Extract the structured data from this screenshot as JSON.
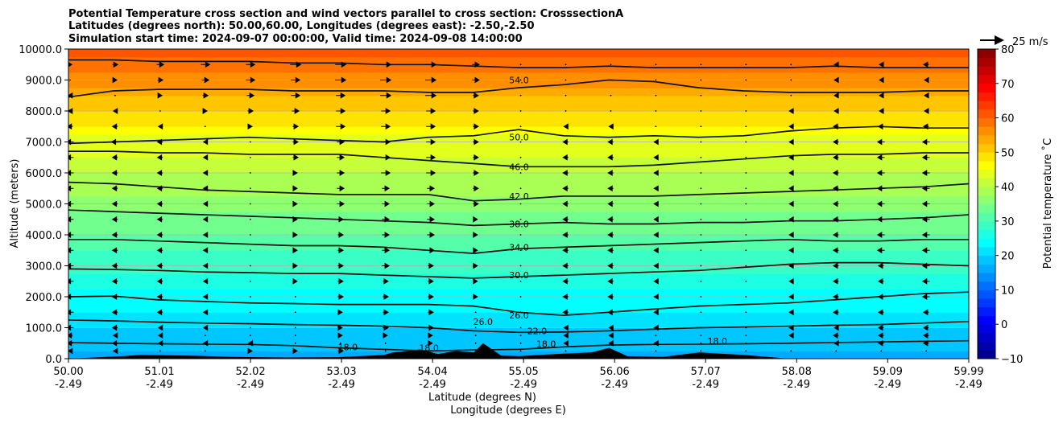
{
  "chart_data": {
    "type": "contour",
    "title_lines": [
      "Potential Temperature cross section and wind vectors parallel to cross section: CrosssectionA",
      "Latitudes (degrees north): 50.00,60.00, Longitudes (degrees east): -2.50,-2.50",
      "Simulation start time: 2024-09-07 00:00:00, Valid time: 2024-09-08 14:00:00"
    ],
    "ylabel": "Altitude (meters)",
    "xlabel_line1": "Latitude (degrees N)",
    "xlabel_line2": "Longitude (degrees E)",
    "xlim": [
      50.0,
      59.99
    ],
    "ylim": [
      0,
      10000
    ],
    "grid": true,
    "x_ticks": [
      {
        "lat": "50.00",
        "lon": "-2.49",
        "value": 50.0
      },
      {
        "lat": "51.01",
        "lon": "-2.49",
        "value": 51.01
      },
      {
        "lat": "52.02",
        "lon": "-2.49",
        "value": 52.02
      },
      {
        "lat": "53.03",
        "lon": "-2.49",
        "value": 53.03
      },
      {
        "lat": "54.04",
        "lon": "-2.49",
        "value": 54.04
      },
      {
        "lat": "55.05",
        "lon": "-2.49",
        "value": 55.05
      },
      {
        "lat": "56.06",
        "lon": "-2.49",
        "value": 56.06
      },
      {
        "lat": "57.07",
        "lon": "-2.49",
        "value": 57.07
      },
      {
        "lat": "58.08",
        "lon": "-2.49",
        "value": 58.08
      },
      {
        "lat": "59.09",
        "lon": "-2.49",
        "value": 59.09
      },
      {
        "lat": "59.99",
        "lon": "-2.49",
        "value": 59.99
      }
    ],
    "y_ticks": [
      {
        "label": "0.0",
        "value": 0
      },
      {
        "label": "1000.0",
        "value": 1000
      },
      {
        "label": "2000.0",
        "value": 2000
      },
      {
        "label": "3000.0",
        "value": 3000
      },
      {
        "label": "4000.0",
        "value": 4000
      },
      {
        "label": "5000.0",
        "value": 5000
      },
      {
        "label": "6000.0",
        "value": 6000
      },
      {
        "label": "7000.0",
        "value": 7000
      },
      {
        "label": "8000.0",
        "value": 8000
      },
      {
        "label": "9000.0",
        "value": 9000
      },
      {
        "label": "10000.0",
        "value": 10000
      }
    ],
    "contours": [
      {
        "label": "18.0",
        "value": 18,
        "heights": [
          520,
          500,
          480,
          470,
          460,
          420,
          350,
          300,
          250,
          280,
          300,
          380,
          440,
          460,
          470,
          480,
          500,
          520,
          540,
          560,
          580
        ]
      },
      {
        "label": "22.0",
        "value": 22,
        "heights": [
          1250,
          1220,
          1180,
          1150,
          1130,
          1100,
          1080,
          1050,
          1000,
          900,
          850,
          860,
          900,
          950,
          1000,
          1020,
          1050,
          1080,
          1100,
          1150,
          1200
        ]
      },
      {
        "label": "26.0",
        "value": 26,
        "heights": [
          2000,
          2020,
          1900,
          1850,
          1800,
          1780,
          1750,
          1750,
          1750,
          1700,
          1500,
          1400,
          1500,
          1600,
          1700,
          1750,
          1800,
          1900,
          2000,
          2100,
          2150
        ]
      },
      {
        "label": "30.0",
        "value": 30,
        "heights": [
          2900,
          2880,
          2850,
          2800,
          2780,
          2750,
          2750,
          2700,
          2650,
          2600,
          2650,
          2700,
          2750,
          2800,
          2850,
          2950,
          3050,
          3100,
          3100,
          3050,
          3000
        ]
      },
      {
        "label": "34.0",
        "value": 34,
        "heights": [
          3850,
          3850,
          3800,
          3750,
          3700,
          3650,
          3650,
          3600,
          3500,
          3400,
          3550,
          3600,
          3650,
          3700,
          3750,
          3800,
          3850,
          3800,
          3800,
          3850,
          3850
        ]
      },
      {
        "label": "38.0",
        "value": 38,
        "heights": [
          4800,
          4750,
          4700,
          4650,
          4600,
          4550,
          4500,
          4450,
          4400,
          4300,
          4350,
          4400,
          4350,
          4350,
          4400,
          4400,
          4450,
          4450,
          4500,
          4550,
          4650
        ]
      },
      {
        "label": "42.0",
        "value": 42,
        "heights": [
          5700,
          5650,
          5550,
          5450,
          5400,
          5350,
          5300,
          5300,
          5300,
          5100,
          5150,
          5250,
          5250,
          5250,
          5300,
          5350,
          5400,
          5450,
          5500,
          5550,
          5650
        ]
      },
      {
        "label": "46.0",
        "value": 46,
        "heights": [
          6700,
          6700,
          6650,
          6650,
          6600,
          6600,
          6600,
          6500,
          6400,
          6300,
          6200,
          6200,
          6200,
          6250,
          6350,
          6450,
          6550,
          6600,
          6600,
          6650,
          6650
        ]
      },
      {
        "label": "50.0",
        "value": 50,
        "heights": [
          6950,
          7000,
          7050,
          7100,
          7150,
          7100,
          7050,
          7000,
          7150,
          7200,
          7400,
          7200,
          7150,
          7200,
          7150,
          7200,
          7350,
          7450,
          7500,
          7450,
          7450
        ]
      },
      {
        "label": "54.0",
        "value": 54,
        "heights": [
          8450,
          8650,
          8700,
          8700,
          8700,
          8650,
          8650,
          8650,
          8600,
          8600,
          8750,
          8850,
          9000,
          8950,
          8750,
          8650,
          8600,
          8600,
          8600,
          8650,
          8650
        ]
      },
      {
        "label": "",
        "value": 58,
        "heights": [
          9650,
          9650,
          9600,
          9600,
          9600,
          9550,
          9550,
          9500,
          9500,
          9450,
          9400,
          9400,
          9450,
          9400,
          9400,
          9400,
          9400,
          9450,
          9400,
          9400,
          9400
        ]
      }
    ],
    "contour_label_positions": [
      {
        "label": "54.0",
        "lat": 55.0,
        "alt": 9000
      },
      {
        "label": "50.0",
        "lat": 55.0,
        "alt": 7150
      },
      {
        "label": "46.0",
        "lat": 55.0,
        "alt": 6200
      },
      {
        "label": "42.0",
        "lat": 55.0,
        "alt": 5250
      },
      {
        "label": "38.0",
        "lat": 55.0,
        "alt": 4350
      },
      {
        "label": "34.0",
        "lat": 55.0,
        "alt": 3600
      },
      {
        "label": "30.0",
        "lat": 55.0,
        "alt": 2700
      },
      {
        "label": "26.0",
        "lat": 55.0,
        "alt": 1400
      },
      {
        "label": "26.0",
        "lat": 54.6,
        "alt": 1200
      },
      {
        "label": "22.0",
        "lat": 55.2,
        "alt": 900
      },
      {
        "label": "18.0",
        "lat": 53.1,
        "alt": 380
      },
      {
        "label": "18.0",
        "lat": 54.0,
        "alt": 350
      },
      {
        "label": "18.0",
        "lat": 55.3,
        "alt": 480
      },
      {
        "label": "18.0",
        "lat": 57.2,
        "alt": 570
      }
    ],
    "field": {
      "levels": [
        0,
        1000,
        2000,
        3000,
        4000,
        5000,
        6000,
        7000,
        8000,
        9000,
        10000
      ],
      "surface_value": 17,
      "values": [
        17,
        20,
        24,
        28,
        32,
        36,
        40,
        44,
        50,
        56,
        62
      ]
    },
    "terrain": {
      "lat": [
        50.0,
        50.6,
        50.8,
        51.3,
        51.8,
        52.4,
        53.0,
        53.5,
        53.6,
        53.9,
        54.1,
        54.3,
        54.5,
        54.6,
        54.8,
        55.0,
        55.4,
        55.8,
        56.0,
        56.2,
        56.6,
        57.0,
        57.5,
        58.0,
        59.99
      ],
      "alt": [
        0,
        80,
        120,
        100,
        60,
        40,
        50,
        120,
        200,
        300,
        150,
        250,
        200,
        500,
        100,
        80,
        150,
        200,
        350,
        80,
        60,
        200,
        120,
        0,
        0
      ]
    },
    "wind_arrows": {
      "rows_alt": [
        250,
        500,
        750,
        1000,
        1500,
        2000,
        2500,
        3000,
        3500,
        4000,
        4500,
        5000,
        5500,
        6000,
        6500,
        7000,
        7500,
        8000,
        8500,
        9000,
        9500
      ],
      "cols_lat": [
        50.0,
        50.5,
        51.0,
        51.5,
        52.0,
        52.5,
        53.0,
        53.5,
        54.0,
        54.5,
        55.0,
        55.5,
        56.0,
        56.5,
        57.0,
        57.5,
        58.0,
        58.5,
        59.0,
        59.5
      ],
      "rows_u": [
        [
          -2,
          -2,
          0,
          0,
          2,
          2,
          3,
          0,
          0,
          0,
          0,
          0,
          0,
          0,
          0,
          0,
          0,
          0,
          0,
          0
        ],
        [
          -3,
          -3,
          -2,
          -2,
          -2,
          0,
          0,
          0,
          2,
          0,
          0,
          -2,
          -2,
          -2,
          0,
          0,
          0,
          -2,
          -3,
          -3
        ],
        [
          -3,
          -2,
          -2,
          0,
          0,
          0,
          2,
          2,
          2,
          0,
          0,
          -2,
          -2,
          0,
          0,
          0,
          -2,
          -3,
          -3,
          -3
        ],
        [
          -4,
          -3,
          -2,
          -2,
          0,
          0,
          2,
          3,
          3,
          0,
          0,
          -2,
          -2,
          -2,
          0,
          0,
          -2,
          -2,
          -3,
          -3
        ],
        [
          -4,
          -3,
          -3,
          -2,
          0,
          0,
          2,
          3,
          3,
          0,
          0,
          -3,
          -3,
          -2,
          0,
          0,
          -2,
          -3,
          -3,
          -3
        ],
        [
          -4,
          -3,
          -3,
          -2,
          0,
          0,
          3,
          3,
          3,
          2,
          0,
          -3,
          -3,
          -2,
          0,
          0,
          -2,
          -3,
          -3,
          -4
        ],
        [
          -4,
          -3,
          -3,
          -2,
          0,
          2,
          3,
          3,
          3,
          2,
          0,
          -3,
          -3,
          -2,
          0,
          0,
          -2,
          -3,
          -3,
          -4
        ],
        [
          -4,
          -3,
          -3,
          -2,
          0,
          2,
          3,
          4,
          3,
          2,
          0,
          -3,
          -3,
          -2,
          0,
          0,
          -2,
          -3,
          -3,
          -4
        ],
        [
          -4,
          -3,
          -3,
          -2,
          0,
          2,
          3,
          4,
          4,
          2,
          0,
          -3,
          -3,
          -2,
          0,
          0,
          -2,
          -3,
          -4,
          -4
        ],
        [
          -4,
          -3,
          -3,
          -2,
          0,
          2,
          3,
          4,
          4,
          2,
          0,
          -3,
          -3,
          -2,
          0,
          0,
          -2,
          -3,
          -4,
          -4
        ],
        [
          -4,
          -3,
          -3,
          -2,
          0,
          2,
          3,
          4,
          4,
          2,
          0,
          -3,
          -3,
          -2,
          0,
          0,
          -2,
          -3,
          -4,
          -4
        ],
        [
          -4,
          -3,
          -3,
          -2,
          0,
          2,
          4,
          4,
          4,
          3,
          0,
          -3,
          -3,
          -2,
          0,
          0,
          -2,
          -3,
          -4,
          -4
        ],
        [
          -4,
          -3,
          -3,
          -2,
          0,
          2,
          4,
          4,
          4,
          3,
          0,
          -3,
          -3,
          -2,
          0,
          0,
          -2,
          -3,
          -4,
          -4
        ],
        [
          -4,
          -3,
          -3,
          -2,
          0,
          2,
          4,
          5,
          5,
          3,
          0,
          -3,
          -3,
          -2,
          0,
          0,
          -2,
          -3,
          -4,
          -4
        ],
        [
          -4,
          -3,
          -3,
          -2,
          0,
          3,
          4,
          5,
          5,
          3,
          0,
          -3,
          -3,
          -2,
          0,
          0,
          -2,
          -3,
          -4,
          -4
        ],
        [
          -4,
          -4,
          -3,
          -2,
          0,
          3,
          4,
          5,
          5,
          3,
          0,
          -3,
          -3,
          -2,
          0,
          0,
          -2,
          -3,
          -4,
          -4
        ],
        [
          -3,
          -3,
          -2,
          0,
          2,
          3,
          5,
          5,
          5,
          3,
          0,
          -2,
          -2,
          0,
          0,
          0,
          -2,
          -3,
          -3,
          -3
        ],
        [
          -2,
          -2,
          0,
          2,
          3,
          4,
          5,
          5,
          5,
          3,
          0,
          0,
          0,
          0,
          0,
          0,
          -2,
          -2,
          -2,
          -2
        ],
        [
          -2,
          0,
          2,
          3,
          4,
          5,
          5,
          6,
          6,
          3,
          0,
          0,
          0,
          0,
          0,
          0,
          0,
          -2,
          -2,
          -2
        ],
        [
          0,
          2,
          3,
          4,
          5,
          5,
          6,
          6,
          6,
          4,
          0,
          0,
          0,
          0,
          0,
          0,
          0,
          -2,
          -2,
          -2
        ],
        [
          2,
          3,
          4,
          5,
          5,
          6,
          6,
          6,
          6,
          4,
          0,
          0,
          0,
          0,
          0,
          0,
          0,
          -2,
          -2,
          -3
        ]
      ]
    },
    "quiver_key": {
      "label": "25 m/s"
    },
    "colorbar": {
      "label": "Potential temperature $^\\circ$C",
      "display_label": "Potential temperature ˚C",
      "min": -10,
      "max": 80,
      "step": 2.5,
      "tick_labels": [
        "−10",
        "0",
        "10",
        "20",
        "30",
        "40",
        "50",
        "60",
        "70",
        "80"
      ],
      "tick_values": [
        -10,
        0,
        10,
        20,
        30,
        40,
        50,
        60,
        70,
        80
      ],
      "colormap": "jet"
    }
  }
}
